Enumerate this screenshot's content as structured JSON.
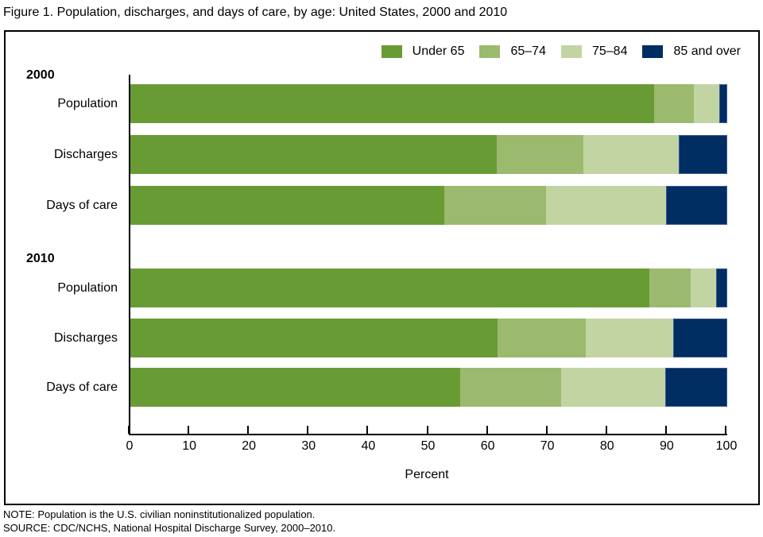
{
  "figure_title": "Figure 1. Population, discharges, and days of care, by age: United States, 2000 and 2010",
  "chart_data": {
    "type": "bar",
    "orientation": "horizontal-stacked",
    "title": "Figure 1. Population, discharges, and days of care, by age: United States, 2000 and 2010",
    "series_names": [
      "Under 65",
      "65–74",
      "75–84",
      "85 and over"
    ],
    "series_colors": [
      "#699B35",
      "#9BBA6E",
      "#C3D4A3",
      "#002D62"
    ],
    "groups": [
      {
        "label": "2000",
        "rows": [
          {
            "label": "Population",
            "values": [
              87.7,
              6.7,
              4.3,
              1.3
            ]
          },
          {
            "label": "Discharges",
            "values": [
              61.4,
              14.5,
              16.0,
              8.1
            ]
          },
          {
            "label": "Days of care",
            "values": [
              52.6,
              17.0,
              20.1,
              10.3
            ]
          }
        ]
      },
      {
        "label": "2010",
        "rows": [
          {
            "label": "Population",
            "values": [
              86.9,
              7.0,
              4.3,
              1.8
            ]
          },
          {
            "label": "Discharges",
            "values": [
              61.5,
              14.8,
              14.6,
              9.1
            ]
          },
          {
            "label": "Days of care",
            "values": [
              55.3,
              16.9,
              17.4,
              10.4
            ]
          }
        ]
      }
    ],
    "xlabel": "Percent",
    "xlim": [
      0,
      100
    ],
    "xticks": [
      0,
      10,
      20,
      30,
      40,
      50,
      60,
      70,
      80,
      90,
      100
    ],
    "legend_position": "top-right",
    "grid": false
  },
  "notes": {
    "note": "NOTE: Population is the U.S. civilian noninstitutionalized population.",
    "source": "SOURCE: CDC/NCHS, National Hospital Discharge Survey, 2000–2010."
  }
}
